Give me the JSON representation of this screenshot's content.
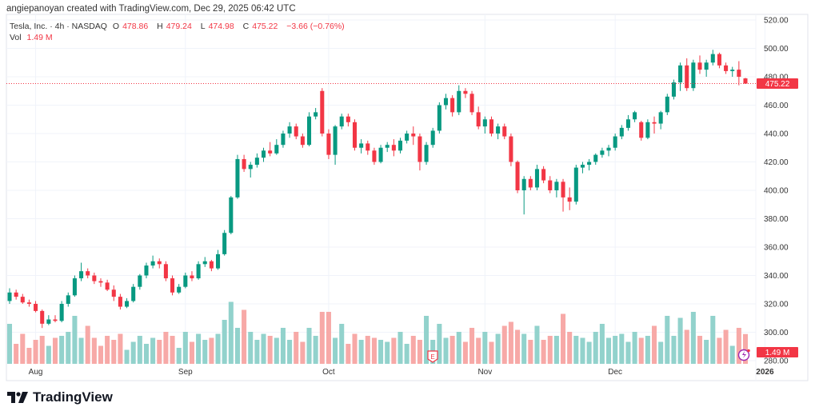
{
  "credit": "angiepanoyan created with TradingView.com, Dec 29, 2025 06:42 UTC",
  "legend": {
    "symbol": "Tesla, Inc. · 4h · NASDAQ",
    "o_label": "O",
    "o": "478.86",
    "h_label": "H",
    "h": "479.24",
    "l_label": "L",
    "l": "474.98",
    "c_label": "C",
    "c": "475.22",
    "change": "−3.66 (−0.76%)",
    "vol_label": "Vol",
    "vol": "1.49 M"
  },
  "price_label": "475.22",
  "volume_label": "1.49 M",
  "earnings_marker": "E",
  "logo_text": "TradingView",
  "colors": {
    "up": "#089981",
    "down": "#f23645",
    "up_vol": "#92d2cc",
    "down_vol": "#f7a9a7",
    "grid": "#f0f3fa"
  },
  "chart_data": {
    "type": "candlestick",
    "title": "Tesla, Inc. · 4h · NASDAQ",
    "ylim": [
      280,
      520
    ],
    "y_ticks": [
      "520.00",
      "500.00",
      "480.00",
      "460.00",
      "440.00",
      "420.00",
      "400.00",
      "380.00",
      "360.00",
      "340.00",
      "320.00",
      "300.00",
      "280.00"
    ],
    "x_ticks": [
      {
        "label": "Aug",
        "index": 4
      },
      {
        "label": "Sep",
        "index": 27
      },
      {
        "label": "Oct",
        "index": 49
      },
      {
        "label": "Nov",
        "index": 73
      },
      {
        "label": "Dec",
        "index": 93
      },
      {
        "label": "2026",
        "index": 116
      }
    ],
    "last_price": 475.22,
    "volume_max": 3.2,
    "candles_ohlcv": [
      [
        322,
        331,
        320,
        328,
        2.0
      ],
      [
        328,
        330,
        323,
        325,
        1.0
      ],
      [
        325,
        327,
        320,
        321,
        1.5
      ],
      [
        321,
        323,
        318,
        320,
        0.8
      ],
      [
        320,
        322,
        314,
        315,
        1.2
      ],
      [
        315,
        316,
        303,
        306,
        1.4
      ],
      [
        306,
        312,
        305,
        309,
        0.9
      ],
      [
        309,
        312,
        307,
        308,
        1.3
      ],
      [
        308,
        322,
        307,
        320,
        1.4
      ],
      [
        320,
        328,
        318,
        326,
        1.6
      ],
      [
        326,
        340,
        325,
        338,
        2.4
      ],
      [
        338,
        349,
        336,
        343,
        1.3
      ],
      [
        343,
        345,
        338,
        340,
        1.9
      ],
      [
        340,
        342,
        334,
        336,
        1.3
      ],
      [
        336,
        338,
        332,
        335,
        0.9
      ],
      [
        335,
        337,
        329,
        330,
        1.4
      ],
      [
        330,
        333,
        322,
        325,
        1.2
      ],
      [
        325,
        327,
        316,
        318,
        1.5
      ],
      [
        318,
        324,
        317,
        322,
        0.7
      ],
      [
        322,
        334,
        321,
        332,
        1.1
      ],
      [
        332,
        341,
        330,
        340,
        1.4
      ],
      [
        340,
        349,
        338,
        347,
        1.0
      ],
      [
        347,
        354,
        345,
        350,
        1.3
      ],
      [
        350,
        352,
        345,
        348,
        1.2
      ],
      [
        348,
        350,
        336,
        338,
        1.6
      ],
      [
        338,
        340,
        326,
        328,
        1.4
      ],
      [
        328,
        334,
        327,
        332,
        0.8
      ],
      [
        332,
        342,
        331,
        340,
        1.6
      ],
      [
        340,
        343,
        336,
        338,
        1.1
      ],
      [
        338,
        350,
        337,
        348,
        1.5
      ],
      [
        348,
        353,
        346,
        350,
        1.2
      ],
      [
        350,
        351,
        343,
        345,
        1.3
      ],
      [
        345,
        358,
        344,
        355,
        1.5
      ],
      [
        355,
        372,
        354,
        370,
        2.2
      ],
      [
        370,
        396,
        369,
        395,
        3.1
      ],
      [
        395,
        425,
        394,
        422,
        1.8
      ],
      [
        422,
        425,
        413,
        415,
        2.7
      ],
      [
        415,
        420,
        409,
        418,
        1.6
      ],
      [
        418,
        426,
        416,
        423,
        1.2
      ],
      [
        423,
        430,
        420,
        428,
        1.5
      ],
      [
        428,
        434,
        424,
        426,
        1.4
      ],
      [
        426,
        436,
        425,
        432,
        1.3
      ],
      [
        432,
        442,
        430,
        440,
        1.8
      ],
      [
        440,
        448,
        437,
        445,
        1.2
      ],
      [
        445,
        447,
        436,
        438,
        1.6
      ],
      [
        438,
        440,
        430,
        432,
        1.1
      ],
      [
        432,
        455,
        431,
        452,
        1.8
      ],
      [
        452,
        458,
        450,
        455,
        1.4
      ],
      [
        470,
        472,
        438,
        440,
        2.6
      ],
      [
        440,
        443,
        422,
        425,
        2.6
      ],
      [
        425,
        446,
        418,
        445,
        1.3
      ],
      [
        445,
        454,
        443,
        452,
        2.0
      ],
      [
        452,
        454,
        445,
        448,
        1.0
      ],
      [
        448,
        450,
        428,
        430,
        1.5
      ],
      [
        430,
        436,
        426,
        433,
        1.2
      ],
      [
        433,
        435,
        425,
        428,
        1.4
      ],
      [
        428,
        430,
        418,
        420,
        1.3
      ],
      [
        420,
        432,
        419,
        430,
        1.2
      ],
      [
        430,
        434,
        427,
        432,
        1.1
      ],
      [
        432,
        436,
        424,
        428,
        1.3
      ],
      [
        428,
        437,
        426,
        435,
        1.6
      ],
      [
        435,
        442,
        433,
        440,
        1.0
      ],
      [
        440,
        445,
        432,
        438,
        1.4
      ],
      [
        438,
        440,
        414,
        420,
        1.2
      ],
      [
        420,
        434,
        418,
        432,
        2.4
      ],
      [
        432,
        444,
        430,
        442,
        1.2
      ],
      [
        442,
        462,
        440,
        460,
        2.0
      ],
      [
        460,
        468,
        457,
        465,
        1.3
      ],
      [
        465,
        467,
        452,
        455,
        1.4
      ],
      [
        455,
        474,
        453,
        470,
        1.6
      ],
      [
        470,
        472,
        465,
        468,
        1.1
      ],
      [
        468,
        470,
        453,
        455,
        1.8
      ],
      [
        455,
        459,
        443,
        445,
        1.3
      ],
      [
        445,
        452,
        440,
        450,
        1.6
      ],
      [
        450,
        452,
        438,
        440,
        1.1
      ],
      [
        440,
        447,
        436,
        445,
        1.5
      ],
      [
        445,
        447,
        436,
        438,
        1.9
      ],
      [
        438,
        440,
        417,
        420,
        2.1
      ],
      [
        420,
        421,
        398,
        400,
        1.7
      ],
      [
        400,
        410,
        383,
        408,
        1.5
      ],
      [
        408,
        410,
        400,
        402,
        1.2
      ],
      [
        402,
        418,
        400,
        415,
        1.9
      ],
      [
        415,
        417,
        405,
        407,
        1.2
      ],
      [
        407,
        410,
        398,
        400,
        1.4
      ],
      [
        400,
        408,
        395,
        406,
        1.4
      ],
      [
        406,
        408,
        385,
        395,
        2.5
      ],
      [
        395,
        402,
        386,
        392,
        1.6
      ],
      [
        392,
        418,
        390,
        416,
        1.4
      ],
      [
        416,
        420,
        412,
        418,
        1.3
      ],
      [
        418,
        422,
        414,
        420,
        1.1
      ],
      [
        420,
        426,
        418,
        425,
        1.6
      ],
      [
        425,
        430,
        423,
        428,
        2.0
      ],
      [
        428,
        432,
        424,
        430,
        1.3
      ],
      [
        430,
        440,
        428,
        438,
        1.4
      ],
      [
        438,
        446,
        436,
        444,
        1.5
      ],
      [
        444,
        453,
        442,
        450,
        1.1
      ],
      [
        450,
        456,
        448,
        455,
        1.6
      ],
      [
        448,
        449,
        435,
        437,
        1.3
      ],
      [
        437,
        450,
        436,
        448,
        1.4
      ],
      [
        448,
        452,
        440,
        447,
        1.9
      ],
      [
        447,
        456,
        443,
        455,
        1.1
      ],
      [
        455,
        468,
        453,
        466,
        2.4
      ],
      [
        466,
        478,
        464,
        476,
        1.4
      ],
      [
        476,
        490,
        470,
        488,
        2.3
      ],
      [
        488,
        493,
        470,
        472,
        1.7
      ],
      [
        472,
        492,
        470,
        490,
        2.6
      ],
      [
        490,
        495,
        482,
        485,
        1.4
      ],
      [
        485,
        492,
        480,
        490,
        1.2
      ],
      [
        490,
        499,
        488,
        496,
        2.4
      ],
      [
        496,
        497,
        486,
        488,
        1.3
      ],
      [
        488,
        490,
        482,
        484,
        1.7
      ],
      [
        484,
        487,
        480,
        485,
        0.9
      ],
      [
        485,
        491,
        474,
        480,
        1.8
      ],
      [
        478.86,
        479.24,
        474.98,
        475.22,
        1.49
      ]
    ]
  }
}
